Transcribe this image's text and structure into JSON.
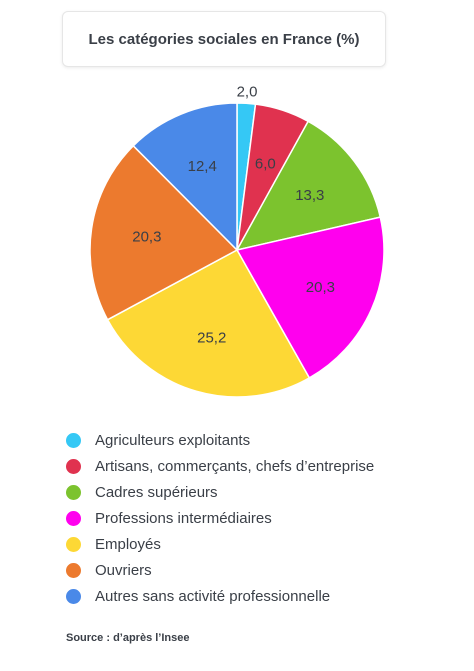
{
  "chart_data": {
    "type": "pie",
    "title": "Les catégories sociales en France (%)",
    "categories": [
      "Agriculteurs exploitants",
      "Artisans, commerçants, chefs d’entreprise",
      "Cadres supérieurs",
      "Professions intermédiaires",
      "Employés",
      "Ouvriers",
      "Autres sans activité professionnelle"
    ],
    "values": [
      2.0,
      6.0,
      13.3,
      20.3,
      25.2,
      20.3,
      12.4
    ],
    "labels": [
      "2,0",
      "6,0",
      "13,3",
      "20,3",
      "25,2",
      "20,3",
      "12,4"
    ],
    "colors": [
      "#35c8f5",
      "#e0324f",
      "#7cc32e",
      "#ff00ee",
      "#fdd835",
      "#ec7a2e",
      "#4a89e8"
    ],
    "legend_position": "bottom",
    "source": "Source : d’après l’Insee"
  }
}
